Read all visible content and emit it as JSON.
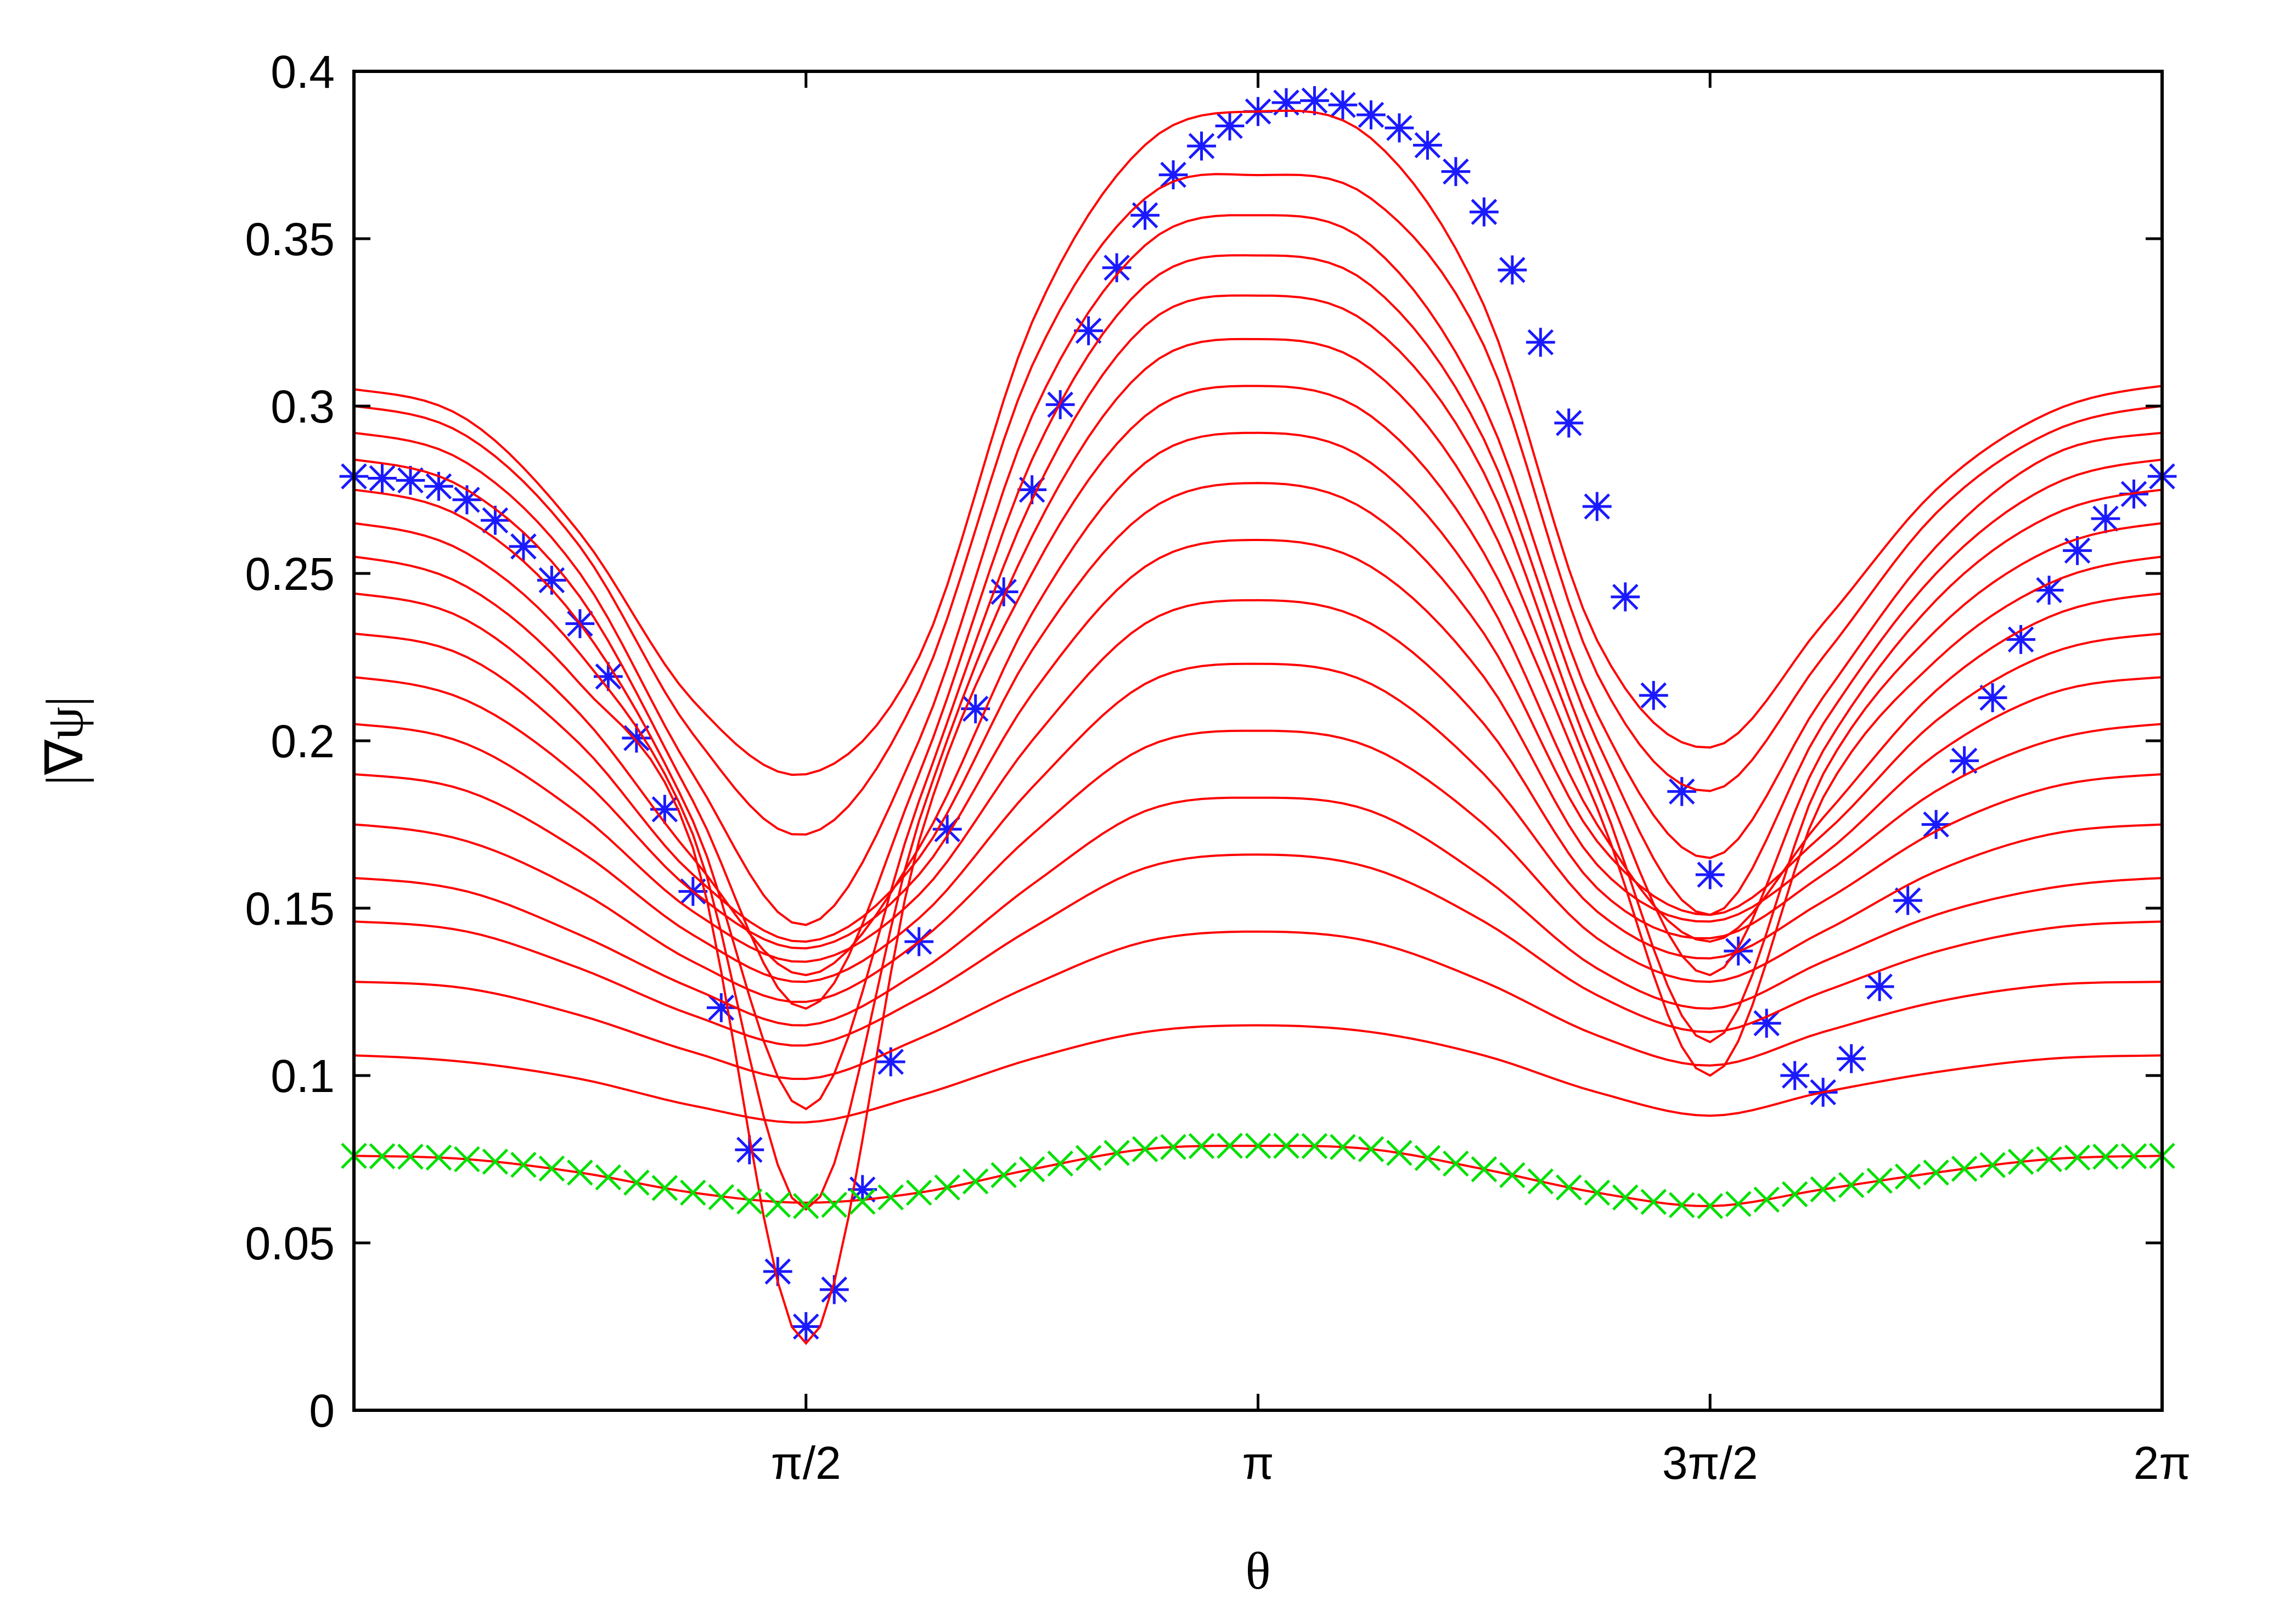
{
  "chart_data": {
    "type": "line",
    "title": "",
    "xlabel": "θ",
    "ylabel": "|∇ψ|",
    "xlim": [
      0,
      6.2832
    ],
    "ylim": [
      0,
      0.4
    ],
    "x_ticks": [
      {
        "value": 1.5708,
        "label": "π/2"
      },
      {
        "value": 3.1416,
        "label": "π"
      },
      {
        "value": 4.7124,
        "label": "3π/2"
      },
      {
        "value": 6.2832,
        "label": "2π"
      }
    ],
    "y_ticks": [
      {
        "value": 0,
        "label": "0"
      },
      {
        "value": 0.05,
        "label": "0.05"
      },
      {
        "value": 0.1,
        "label": "0.1"
      },
      {
        "value": 0.15,
        "label": "0.15"
      },
      {
        "value": 0.2,
        "label": "0.2"
      },
      {
        "value": 0.25,
        "label": "0.25"
      },
      {
        "value": 0.3,
        "label": "0.3"
      },
      {
        "value": 0.35,
        "label": "0.35"
      },
      {
        "value": 0.4,
        "label": "0.4"
      }
    ],
    "grid": false,
    "x": [
      0,
      0.3927,
      0.7854,
      1.1781,
      1.5708,
      1.9635,
      2.3562,
      2.7489,
      3.1416,
      3.5343,
      3.927,
      4.3197,
      4.7124,
      5.1051,
      5.4978,
      5.8905,
      6.2832
    ],
    "series": [
      {
        "color": "#1a1aff",
        "marker": "asterisk",
        "style": "points",
        "values": [
          0.279,
          0.272,
          0.235,
          0.155,
          0.025,
          0.14,
          0.275,
          0.357,
          0.388,
          0.387,
          0.358,
          0.27,
          0.16,
          0.095,
          0.175,
          0.245,
          0.279
        ]
      },
      {
        "color": "#ff0000",
        "style": "line",
        "values": [
          0.305,
          0.296,
          0.262,
          0.212,
          0.19,
          0.225,
          0.325,
          0.378,
          0.388,
          0.38,
          0.33,
          0.23,
          0.198,
          0.235,
          0.275,
          0.298,
          0.306
        ]
      },
      {
        "color": "#ff0000",
        "style": "line",
        "values": [
          0.3,
          0.291,
          0.258,
          0.202,
          0.172,
          0.215,
          0.312,
          0.362,
          0.369,
          0.362,
          0.318,
          0.22,
          0.185,
          0.225,
          0.268,
          0.292,
          0.3
        ]
      },
      {
        "color": "#ff0000",
        "style": "line",
        "values": [
          0.292,
          0.283,
          0.25,
          0.19,
          0.145,
          0.2,
          0.297,
          0.348,
          0.357,
          0.348,
          0.3,
          0.208,
          0.165,
          0.213,
          0.258,
          0.285,
          0.292
        ]
      },
      {
        "color": "#ff0000",
        "style": "line",
        "values": [
          0.284,
          0.275,
          0.243,
          0.182,
          0.12,
          0.19,
          0.284,
          0.336,
          0.345,
          0.336,
          0.29,
          0.2,
          0.148,
          0.205,
          0.25,
          0.276,
          0.284
        ]
      },
      {
        "color": "#ff0000",
        "style": "line",
        "values": [
          0.275,
          0.266,
          0.235,
          0.176,
          0.09,
          0.182,
          0.272,
          0.324,
          0.333,
          0.324,
          0.28,
          0.192,
          0.13,
          0.197,
          0.242,
          0.267,
          0.275
        ]
      },
      {
        "color": "#ff0000",
        "style": "line",
        "values": [
          0.265,
          0.256,
          0.226,
          0.172,
          0.06,
          0.176,
          0.261,
          0.311,
          0.32,
          0.311,
          0.268,
          0.186,
          0.11,
          0.19,
          0.233,
          0.257,
          0.265
        ]
      },
      {
        "color": "#ff0000",
        "style": "line",
        "values": [
          0.255,
          0.246,
          0.217,
          0.168,
          0.02,
          0.17,
          0.25,
          0.297,
          0.306,
          0.297,
          0.256,
          0.18,
          0.1,
          0.183,
          0.224,
          0.247,
          0.255
        ]
      },
      {
        "color": "#ff0000",
        "style": "line",
        "values": [
          0.244,
          0.236,
          0.208,
          0.165,
          0.13,
          0.168,
          0.238,
          0.283,
          0.292,
          0.283,
          0.244,
          0.175,
          0.14,
          0.177,
          0.215,
          0.237,
          0.244
        ]
      },
      {
        "color": "#ff0000",
        "style": "line",
        "values": [
          0.232,
          0.225,
          0.199,
          0.16,
          0.14,
          0.165,
          0.227,
          0.268,
          0.277,
          0.268,
          0.232,
          0.17,
          0.148,
          0.172,
          0.206,
          0.226,
          0.232
        ]
      },
      {
        "color": "#ff0000",
        "style": "line",
        "values": [
          0.219,
          0.212,
          0.189,
          0.155,
          0.138,
          0.16,
          0.214,
          0.252,
          0.26,
          0.252,
          0.219,
          0.163,
          0.146,
          0.166,
          0.196,
          0.214,
          0.219
        ]
      },
      {
        "color": "#ff0000",
        "style": "line",
        "values": [
          0.205,
          0.199,
          0.178,
          0.149,
          0.134,
          0.154,
          0.2,
          0.235,
          0.242,
          0.235,
          0.205,
          0.156,
          0.141,
          0.16,
          0.185,
          0.2,
          0.205
        ]
      },
      {
        "color": "#ff0000",
        "style": "line",
        "values": [
          0.19,
          0.185,
          0.167,
          0.142,
          0.128,
          0.147,
          0.186,
          0.217,
          0.223,
          0.217,
          0.19,
          0.149,
          0.135,
          0.152,
          0.173,
          0.186,
          0.19
        ]
      },
      {
        "color": "#ff0000",
        "style": "line",
        "values": [
          0.175,
          0.17,
          0.155,
          0.134,
          0.122,
          0.14,
          0.172,
          0.198,
          0.203,
          0.198,
          0.175,
          0.141,
          0.128,
          0.143,
          0.161,
          0.172,
          0.175
        ]
      },
      {
        "color": "#ff0000",
        "style": "line",
        "values": [
          0.159,
          0.155,
          0.142,
          0.126,
          0.115,
          0.131,
          0.157,
          0.179,
          0.183,
          0.179,
          0.159,
          0.132,
          0.12,
          0.134,
          0.148,
          0.156,
          0.159
        ]
      },
      {
        "color": "#ff0000",
        "style": "line",
        "values": [
          0.146,
          0.143,
          0.132,
          0.118,
          0.109,
          0.123,
          0.144,
          0.162,
          0.166,
          0.162,
          0.146,
          0.124,
          0.113,
          0.125,
          0.137,
          0.144,
          0.146
        ]
      },
      {
        "color": "#ff0000",
        "style": "line",
        "values": [
          0.128,
          0.126,
          0.118,
          0.107,
          0.099,
          0.111,
          0.127,
          0.14,
          0.143,
          0.14,
          0.128,
          0.112,
          0.103,
          0.113,
          0.122,
          0.127,
          0.128
        ]
      },
      {
        "color": "#ff0000",
        "style": "line",
        "values": [
          0.106,
          0.104,
          0.099,
          0.091,
          0.086,
          0.094,
          0.105,
          0.113,
          0.115,
          0.113,
          0.106,
          0.095,
          0.088,
          0.095,
          0.101,
          0.105,
          0.106
        ]
      },
      {
        "color": "#ff0000",
        "style": "line",
        "values": [
          0.076,
          0.075,
          0.071,
          0.065,
          0.062,
          0.065,
          0.072,
          0.078,
          0.079,
          0.078,
          0.072,
          0.065,
          0.061,
          0.066,
          0.071,
          0.075,
          0.076
        ]
      },
      {
        "color": "#00e000",
        "marker": "cross",
        "style": "points",
        "values": [
          0.076,
          0.075,
          0.071,
          0.065,
          0.061,
          0.065,
          0.072,
          0.078,
          0.079,
          0.078,
          0.072,
          0.065,
          0.061,
          0.066,
          0.071,
          0.075,
          0.076
        ]
      }
    ]
  }
}
